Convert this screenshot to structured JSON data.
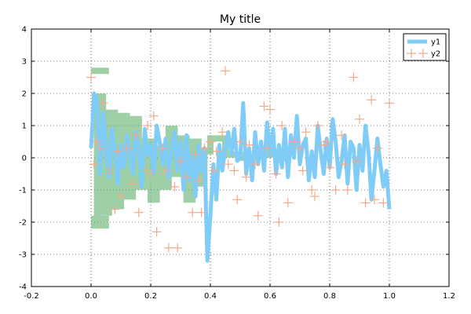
{
  "chart_data": {
    "type": "line",
    "title": "My title",
    "xlabel": "",
    "ylabel": "",
    "xlim": [
      -0.2,
      1.2
    ],
    "ylim": [
      -4,
      4
    ],
    "xticks": [
      "-0.2",
      "0.0",
      "0.2",
      "0.4",
      "0.6",
      "0.8",
      "1.0",
      "1.2"
    ],
    "yticks": [
      "-4",
      "-3",
      "-2",
      "-1",
      "0",
      "1",
      "2",
      "3",
      "4"
    ],
    "grid": true,
    "legend_position": "top-right",
    "series": [
      {
        "name": "y1",
        "style": "line",
        "color": "#7fccf8",
        "x": [
          0.0,
          0.01,
          0.02,
          0.03,
          0.04,
          0.05,
          0.06,
          0.07,
          0.08,
          0.09,
          0.1,
          0.11,
          0.12,
          0.13,
          0.14,
          0.15,
          0.16,
          0.17,
          0.18,
          0.19,
          0.2,
          0.21,
          0.22,
          0.23,
          0.24,
          0.25,
          0.26,
          0.27,
          0.28,
          0.29,
          0.3,
          0.31,
          0.32,
          0.33,
          0.34,
          0.35,
          0.36,
          0.37,
          0.38,
          0.39,
          0.4,
          0.41,
          0.42,
          0.43,
          0.44,
          0.45,
          0.46,
          0.47,
          0.48,
          0.49,
          0.5,
          0.51,
          0.52,
          0.53,
          0.54,
          0.55,
          0.56,
          0.57,
          0.58,
          0.59,
          0.6,
          0.61,
          0.62,
          0.63,
          0.64,
          0.65,
          0.66,
          0.67,
          0.68,
          0.69,
          0.7,
          0.71,
          0.72,
          0.73,
          0.74,
          0.75,
          0.76,
          0.77,
          0.78,
          0.79,
          0.8,
          0.81,
          0.82,
          0.83,
          0.84,
          0.85,
          0.86,
          0.87,
          0.88,
          0.89,
          0.9,
          0.91,
          0.92,
          0.93,
          0.94,
          0.95,
          0.96,
          0.97,
          0.98,
          0.99,
          1.0
        ],
        "y": [
          0.3,
          2.0,
          1.8,
          -0.5,
          1.4,
          0.3,
          -0.6,
          0.9,
          0.2,
          -0.8,
          0.4,
          -0.3,
          0.7,
          0.1,
          -0.5,
          0.8,
          0.3,
          -0.9,
          0.9,
          0.1,
          0.4,
          -0.5,
          1.0,
          0.5,
          -0.2,
          0.6,
          -0.6,
          0.3,
          0.8,
          -0.4,
          0.5,
          -1.0,
          0.7,
          -0.7,
          0.1,
          -1.2,
          0.4,
          -0.4,
          0.3,
          -3.2,
          -1.8,
          -0.2,
          -1.3,
          0.4,
          -0.4,
          0.3,
          0.8,
          0.1,
          0.9,
          -0.1,
          0.0,
          1.7,
          -0.5,
          0.3,
          -0.7,
          0.8,
          -0.2,
          0.5,
          -0.4,
          1.1,
          0.1,
          0.9,
          -0.5,
          0.4,
          -0.3,
          0.9,
          -0.6,
          0.7,
          0.0,
          1.3,
          -0.2,
          0.4,
          0.6,
          -0.7,
          0.2,
          -0.6,
          1.0,
          0.2,
          -0.5,
          0.6,
          -0.3,
          1.2,
          0.5,
          -0.6,
          -0.1,
          0.7,
          -0.8,
          0.5,
          0.3,
          -1.0,
          0.4,
          -0.4,
          1.0,
          0.2,
          -1.3,
          -0.4,
          0.6,
          -0.2,
          -0.9,
          -0.4,
          -1.6
        ]
      },
      {
        "name": "y2",
        "style": "marker",
        "color": "#f4a98a",
        "x": [
          0.0,
          0.01,
          0.02,
          0.03,
          0.04,
          0.06,
          0.08,
          0.09,
          0.1,
          0.12,
          0.14,
          0.15,
          0.16,
          0.18,
          0.19,
          0.2,
          0.21,
          0.22,
          0.24,
          0.25,
          0.26,
          0.28,
          0.29,
          0.3,
          0.32,
          0.34,
          0.35,
          0.36,
          0.37,
          0.38,
          0.4,
          0.41,
          0.42,
          0.44,
          0.45,
          0.46,
          0.48,
          0.49,
          0.5,
          0.52,
          0.53,
          0.55,
          0.56,
          0.58,
          0.59,
          0.6,
          0.62,
          0.63,
          0.64,
          0.66,
          0.68,
          0.7,
          0.71,
          0.72,
          0.74,
          0.75,
          0.76,
          0.78,
          0.79,
          0.8,
          0.82,
          0.84,
          0.85,
          0.86,
          0.88,
          0.89,
          0.9,
          0.92,
          0.94,
          0.95,
          0.96,
          0.98,
          1.0
        ],
        "y": [
          2.5,
          -0.2,
          0.5,
          0.3,
          1.7,
          -0.4,
          -1.6,
          0.2,
          -1.2,
          0.3,
          -0.8,
          0.7,
          -1.7,
          -0.4,
          1.0,
          -0.5,
          1.3,
          -2.3,
          0.3,
          -0.4,
          -2.8,
          -0.9,
          -2.8,
          -0.1,
          -0.6,
          -1.7,
          0.1,
          -0.7,
          -1.7,
          0.3,
          0.5,
          -0.4,
          0.2,
          0.8,
          2.7,
          -0.2,
          -0.4,
          -1.3,
          0.5,
          -0.6,
          0.4,
          -0.2,
          -1.8,
          1.6,
          0.3,
          1.5,
          -0.5,
          -2.0,
          1.0,
          -1.4,
          0.5,
          0.3,
          -0.4,
          0.8,
          -1.0,
          -1.2,
          1.0,
          0.4,
          0.5,
          -0.3,
          -1.0,
          0.7,
          -0.2,
          -1.0,
          2.5,
          -0.1,
          1.2,
          -1.4,
          1.8,
          -1.3,
          0.3,
          -1.4,
          1.7
        ]
      },
      {
        "name": "",
        "style": "step",
        "color": "#5eb06e",
        "x": [
          0.0,
          0.02,
          0.04,
          0.06,
          0.08,
          0.1,
          0.12,
          0.14,
          0.16,
          0.18,
          0.2,
          0.22,
          0.24,
          0.26,
          0.28,
          0.3,
          0.32,
          0.34,
          0.36,
          0.38,
          0.4,
          0.45,
          0.5,
          0.55,
          0.6,
          0.65
        ],
        "y": [
          -2.1,
          1.9,
          -1.7,
          1.4,
          -1.5,
          1.3,
          -1.2,
          1.2,
          -0.9,
          0.5,
          -1.3,
          0.3,
          -0.9,
          0.9,
          -0.5,
          0.6,
          -1.3,
          0.5,
          -0.8,
          0.2,
          0.6,
          0.1,
          0.0,
          0.1,
          0.1,
          0.0
        ],
        "bars": [
          {
            "x0": 0.0,
            "x1": 0.06,
            "y": 2.7
          },
          {
            "x0": 0.0,
            "x1": 0.06,
            "y": -1.9
          },
          {
            "x0": 0.0,
            "x1": 0.06,
            "y": -2.1
          }
        ]
      }
    ]
  }
}
